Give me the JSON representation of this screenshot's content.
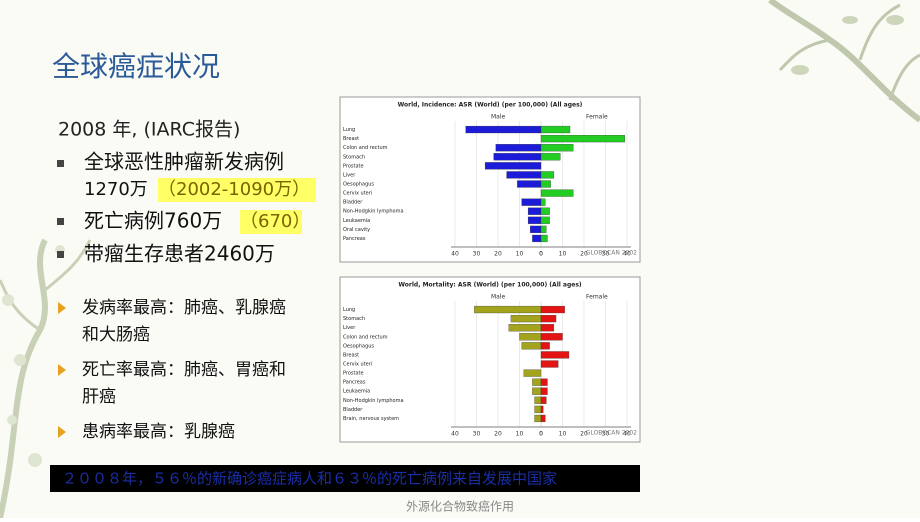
{
  "slide": {
    "title": "全球癌症状况",
    "intro": "2008 年, (IARC报告)",
    "bullets": [
      {
        "text": "全球恶性肿瘤新发病例",
        "detail": "1270万",
        "highlight": "（2002-1090万）"
      },
      {
        "text": "死亡病例760万",
        "highlight": "（670）"
      },
      {
        "text": "带瘤生存患者2460万"
      }
    ],
    "findings": [
      [
        "发病率最高：肺癌、乳腺癌",
        "和大肠癌"
      ],
      [
        "死亡率最高：肺癌、胃癌和",
        "肝癌"
      ],
      [
        "患病率最高：乳腺癌"
      ]
    ],
    "banner": "２００８年，５６％的新确诊癌症病人和６３％的死亡病例来自发展中国家",
    "footer": "外源化合物致癌作用"
  },
  "chart_data": [
    {
      "type": "bar",
      "title": "World, Incidence: ASR (World) (per 100,000) (All ages)",
      "categories": [
        "Lung",
        "Breast",
        "Colon and rectum",
        "Stomach",
        "Prostate",
        "Liver",
        "Oesophagus",
        "Cervix uteri",
        "Bladder",
        "Non-Hodgkin lymphoma",
        "Leukaemia",
        "Oral cavity",
        "Pancreas"
      ],
      "series": [
        {
          "name": "Male",
          "color": "#1c1cd8",
          "values": [
            35,
            0,
            21,
            22,
            26,
            16,
            11,
            0,
            9,
            6,
            6,
            5,
            4
          ]
        },
        {
          "name": "Female",
          "color": "#22cc22",
          "values": [
            13.5,
            39,
            15,
            9,
            0,
            6,
            4.5,
            15,
            2,
            4,
            4,
            2.5,
            3
          ]
        }
      ],
      "xlim": [
        0,
        40
      ],
      "xticks": [
        0,
        10,
        20,
        30,
        40
      ],
      "source": "GLOBOCAN 2002"
    },
    {
      "type": "bar",
      "title": "World, Mortality: ASR (World) (per 100,000) (All ages)",
      "categories": [
        "Lung",
        "Stomach",
        "Liver",
        "Colon and rectum",
        "Oesophagus",
        "Breast",
        "Cervix uteri",
        "Prostate",
        "Pancreas",
        "Leukaemia",
        "Non-Hodgkin lymphoma",
        "Bladder",
        "Brain, nervous system"
      ],
      "series": [
        {
          "name": "Male",
          "color": "#a3a31e",
          "values": [
            31,
            14,
            15,
            10,
            9,
            0,
            0,
            8,
            4,
            4,
            3,
            3,
            3
          ]
        },
        {
          "name": "Female",
          "color": "#e41414",
          "values": [
            11,
            7,
            6,
            10,
            4,
            13,
            8,
            0,
            3,
            3,
            2.5,
            1,
            2
          ]
        }
      ],
      "xlim": [
        0,
        40
      ],
      "xticks": [
        0,
        10,
        20,
        30,
        40
      ],
      "source": "GLOBOCAN 2002"
    }
  ]
}
